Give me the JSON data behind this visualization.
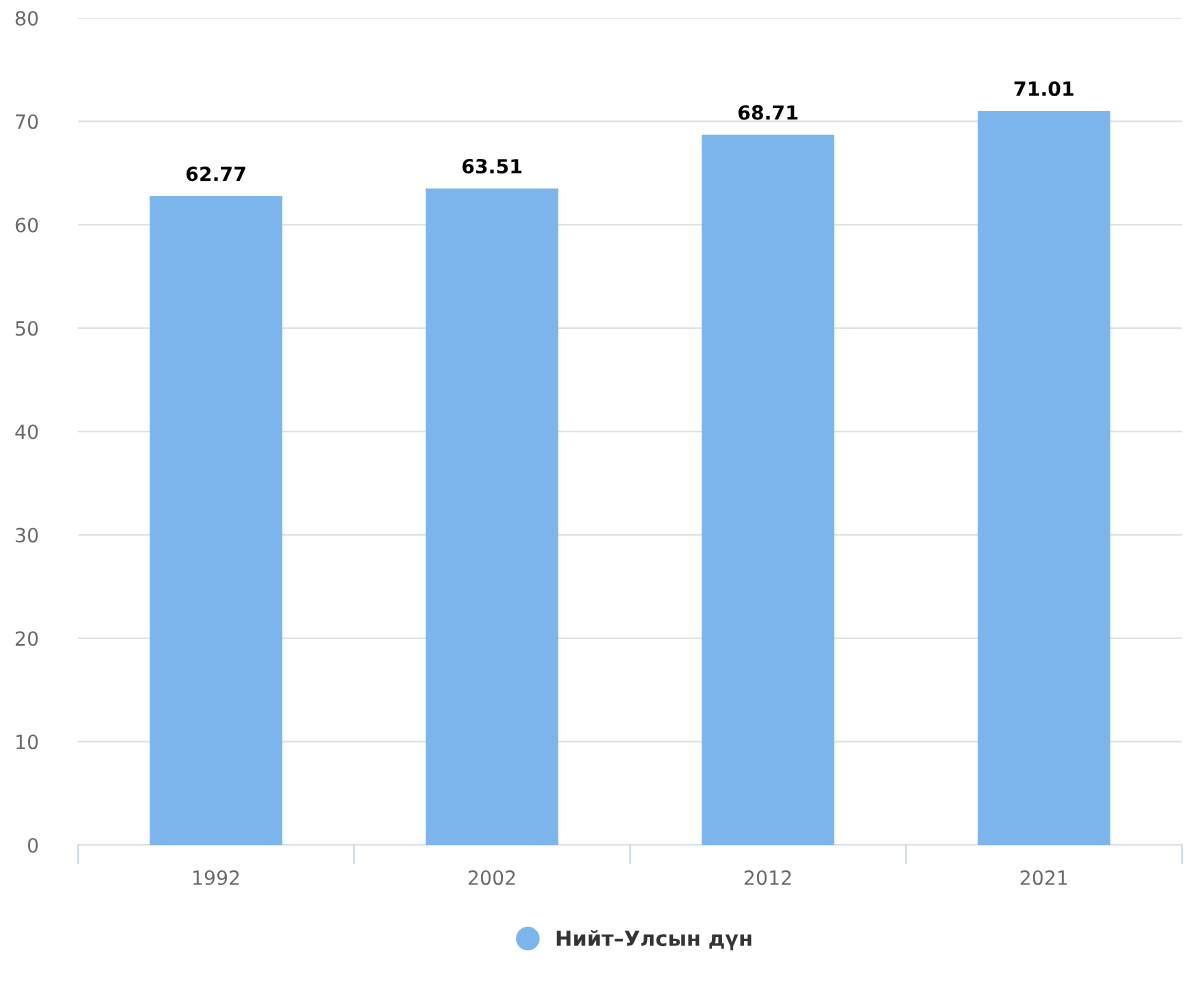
{
  "chart_data": {
    "type": "bar",
    "categories": [
      "1992",
      "2002",
      "2012",
      "2021"
    ],
    "series": [
      {
        "name": "Нийт–Улсын дүн",
        "color": "#7cb5ec",
        "values": [
          62.77,
          63.51,
          68.71,
          71.01
        ]
      }
    ],
    "ylim": [
      0,
      80
    ],
    "yticks": [
      0,
      10,
      20,
      30,
      40,
      50,
      60,
      70,
      80
    ],
    "grid": "y",
    "legend": "bottom",
    "data_labels": true
  }
}
